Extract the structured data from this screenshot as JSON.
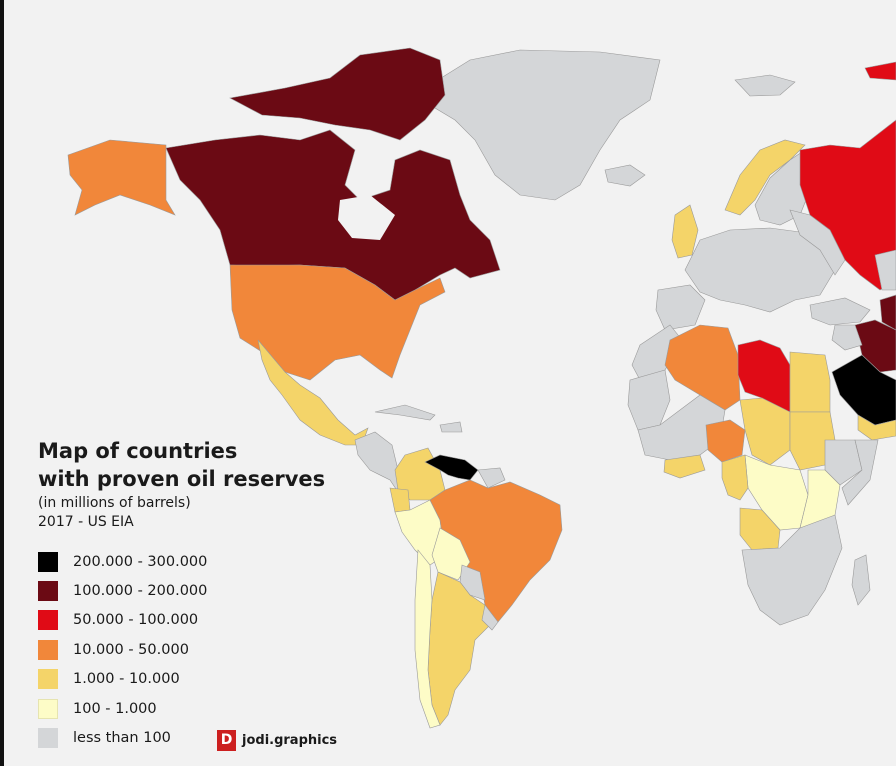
{
  "title_lines": [
    "Map of countries",
    "with proven oil reserves"
  ],
  "subtitle_lines": [
    "(in millions of barrels)",
    "2017 - US EIA"
  ],
  "legend": [
    {
      "label": "200.000 - 300.000",
      "color": "#000000"
    },
    {
      "label": "100.000 - 200.000",
      "color": "#6b0a14"
    },
    {
      "label": "50.000 - 100.000",
      "color": "#e00b16"
    },
    {
      "label": "10.000 - 50.000",
      "color": "#f1873a"
    },
    {
      "label": "1.000 - 10.000",
      "color": "#f4d469"
    },
    {
      "label": "100 - 1.000",
      "color": "#fdfcc7"
    },
    {
      "label": "less than 100",
      "color": "#d4d6d8"
    }
  ],
  "logo": {
    "mark": "D",
    "text": "jodi.graphics"
  },
  "regions": [
    {
      "name": "Canada",
      "cat": 1
    },
    {
      "name": "Alaska",
      "cat": 3
    },
    {
      "name": "United States",
      "cat": 3
    },
    {
      "name": "Greenland",
      "cat": 6
    },
    {
      "name": "Mexico",
      "cat": 4
    },
    {
      "name": "Venezuela",
      "cat": 0
    },
    {
      "name": "Brazil",
      "cat": 3
    },
    {
      "name": "Colombia",
      "cat": 4
    },
    {
      "name": "Ecuador",
      "cat": 4
    },
    {
      "name": "Peru",
      "cat": 5
    },
    {
      "name": "Bolivia",
      "cat": 5
    },
    {
      "name": "Argentina",
      "cat": 4
    },
    {
      "name": "Chile",
      "cat": 5
    },
    {
      "name": "Russia",
      "cat": 2
    },
    {
      "name": "Norway",
      "cat": 4
    },
    {
      "name": "United Kingdom",
      "cat": 4
    },
    {
      "name": "Libya",
      "cat": 2
    },
    {
      "name": "Algeria",
      "cat": 3
    },
    {
      "name": "Nigeria",
      "cat": 3
    },
    {
      "name": "Saudi Arabia",
      "cat": 0
    },
    {
      "name": "Iraq",
      "cat": 1
    },
    {
      "name": "Egypt",
      "cat": 4
    },
    {
      "name": "Sudan",
      "cat": 4
    },
    {
      "name": "Angola",
      "cat": 4
    }
  ]
}
